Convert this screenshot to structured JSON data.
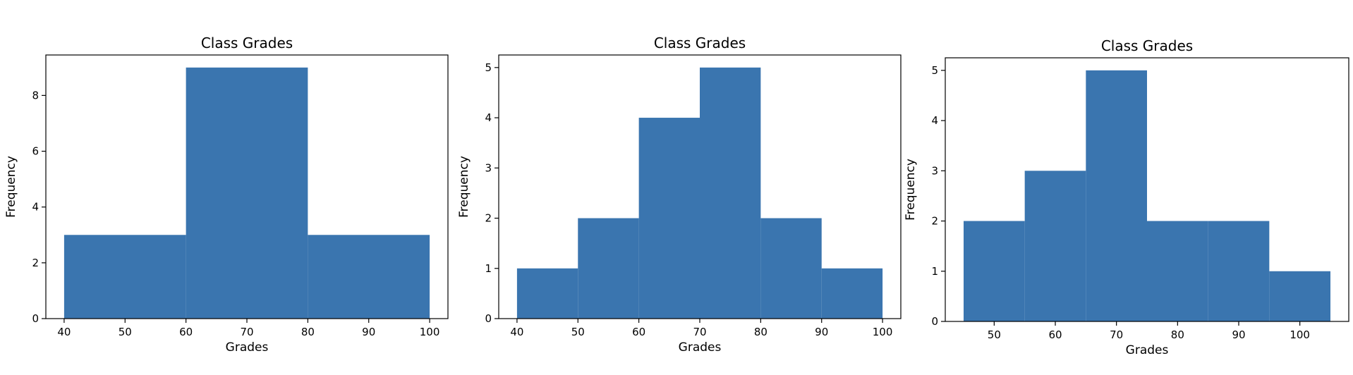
{
  "figure": {
    "bar_color": "#3a75af",
    "background_color": "#ffffff"
  },
  "chart_data": [
    {
      "type": "bar",
      "title": "Class Grades",
      "xlabel": "Grades",
      "ylabel": "Frequency",
      "bin_edges": [
        40,
        60,
        80,
        100
      ],
      "values": [
        3,
        9,
        3
      ],
      "xlim": [
        37,
        103
      ],
      "ylim": [
        0,
        9.45
      ],
      "xticks": [
        40,
        50,
        60,
        70,
        80,
        90,
        100
      ],
      "yticks": [
        0,
        2,
        4,
        6,
        8
      ],
      "grid": false,
      "legend": "none"
    },
    {
      "type": "bar",
      "title": "Class Grades",
      "xlabel": "Grades",
      "ylabel": "Frequency",
      "bin_edges": [
        40,
        50,
        60,
        70,
        80,
        90,
        100
      ],
      "values": [
        1,
        2,
        4,
        5,
        2,
        1
      ],
      "xlim": [
        37,
        103
      ],
      "ylim": [
        0,
        5.25
      ],
      "xticks": [
        40,
        50,
        60,
        70,
        80,
        90,
        100
      ],
      "yticks": [
        0,
        1,
        2,
        3,
        4,
        5
      ],
      "grid": false,
      "legend": "none"
    },
    {
      "type": "bar",
      "title": "Class Grades",
      "xlabel": "Grades",
      "ylabel": "Frequency",
      "bin_edges": [
        45,
        55,
        65,
        75,
        85,
        95,
        105
      ],
      "values": [
        2,
        3,
        5,
        2,
        2,
        1
      ],
      "xlim": [
        42,
        108
      ],
      "ylim": [
        0,
        5.25
      ],
      "xticks": [
        50,
        60,
        70,
        80,
        90,
        100
      ],
      "yticks": [
        0,
        1,
        2,
        3,
        4,
        5
      ],
      "grid": false,
      "legend": "none"
    }
  ]
}
